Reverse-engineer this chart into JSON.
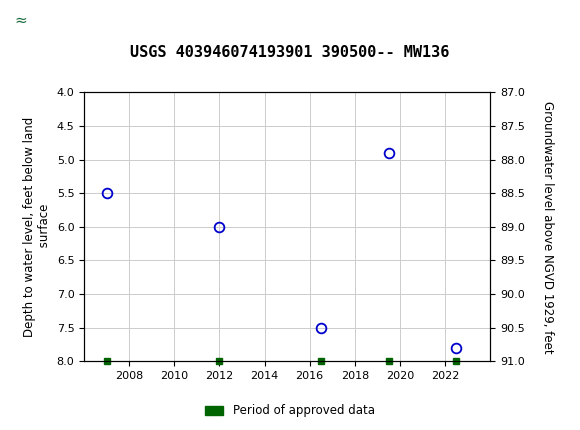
{
  "title": "USGS 403946074193901 390500-- MW136",
  "ylabel_left": "Depth to water level, feet below land\n surface",
  "ylabel_right": "Groundwater level above NGVD 1929, feet",
  "x_data": [
    2007.0,
    2012.0,
    2016.5,
    2019.5,
    2022.5
  ],
  "y_left": [
    5.5,
    6.0,
    7.5,
    4.9,
    7.8
  ],
  "ylim_left": [
    4.0,
    8.0
  ],
  "ylim_right": [
    87.0,
    91.0
  ],
  "xlim": [
    2006,
    2024
  ],
  "yticks_left": [
    4.0,
    4.5,
    5.0,
    5.5,
    6.0,
    6.5,
    7.0,
    7.5,
    8.0
  ],
  "yticks_right": [
    87.0,
    87.5,
    88.0,
    88.5,
    89.0,
    89.5,
    90.0,
    90.5,
    91.0
  ],
  "xticks": [
    2008,
    2010,
    2012,
    2014,
    2016,
    2018,
    2020,
    2022
  ],
  "marker_color": "#0000CC",
  "grid_color": "#cccccc",
  "background_color": "#ffffff",
  "header_color": "#1a6b3c",
  "legend_label": "Period of approved data",
  "legend_color": "#006400",
  "approved_x": [
    2007.0,
    2012.0,
    2016.5,
    2019.5,
    2022.5
  ],
  "title_fontsize": 11,
  "axis_label_fontsize": 8.5,
  "tick_fontsize": 8
}
